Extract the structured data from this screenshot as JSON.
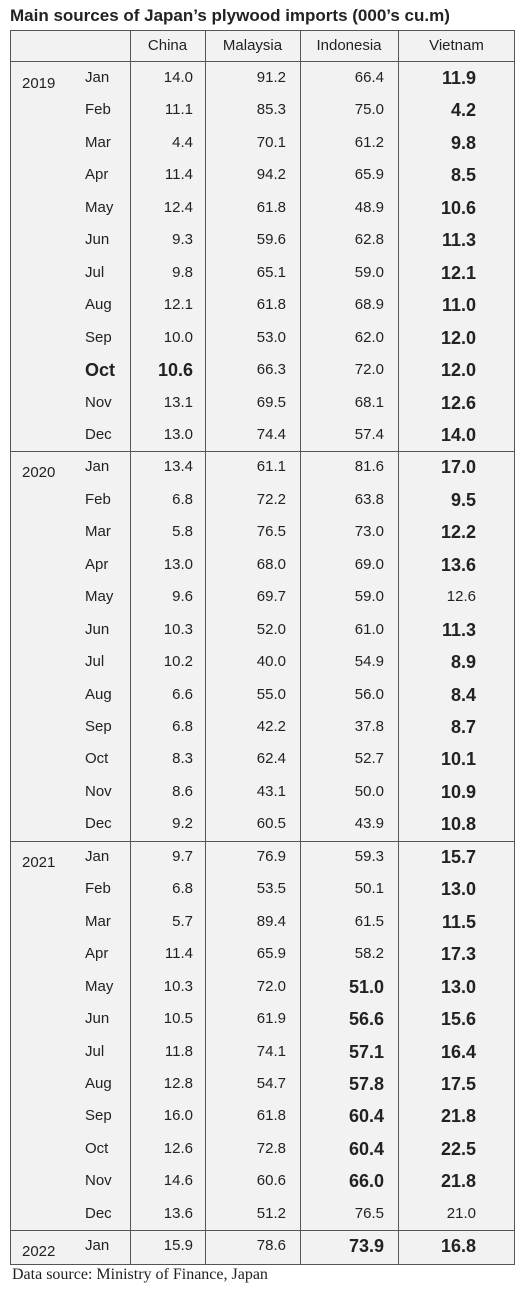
{
  "header": {
    "title": "Main sources of Japan’s plywood imports (000’s cu.m)"
  },
  "table": {
    "columns": [
      "China",
      "Malaysia",
      "Indonesia",
      "Vietnam"
    ],
    "groups": [
      {
        "year": "2019",
        "rows": [
          {
            "month": "Jan",
            "values": [
              "14.0",
              "91.2",
              "66.4",
              "11.9"
            ]
          },
          {
            "month": "Feb",
            "values": [
              "11.1",
              "85.3",
              "75.0",
              "4.2"
            ]
          },
          {
            "month": "Mar",
            "values": [
              "4.4",
              "70.1",
              "61.2",
              "9.8"
            ]
          },
          {
            "month": "Apr",
            "values": [
              "11.4",
              "94.2",
              "65.9",
              "8.5"
            ]
          },
          {
            "month": "May",
            "values": [
              "12.4",
              "61.8",
              "48.9",
              "10.6"
            ]
          },
          {
            "month": "Jun",
            "values": [
              "9.3",
              "59.6",
              "62.8",
              "11.3"
            ]
          },
          {
            "month": "Jul",
            "values": [
              "9.8",
              "65.1",
              "59.0",
              "12.1"
            ]
          },
          {
            "month": "Aug",
            "values": [
              "12.1",
              "61.8",
              "68.9",
              "11.0"
            ]
          },
          {
            "month": "Sep",
            "values": [
              "10.0",
              "53.0",
              "62.0",
              "12.0"
            ]
          },
          {
            "month": "Oct",
            "values": [
              "10.6",
              "66.3",
              "72.0",
              "12.0"
            ]
          },
          {
            "month": "Nov",
            "values": [
              "13.1",
              "69.5",
              "68.1",
              "12.6"
            ]
          },
          {
            "month": "Dec",
            "values": [
              "13.0",
              "74.4",
              "57.4",
              "14.0"
            ]
          }
        ]
      },
      {
        "year": "2020",
        "rows": [
          {
            "month": "Jan",
            "values": [
              "13.4",
              "61.1",
              "81.6",
              "17.0"
            ]
          },
          {
            "month": "Feb",
            "values": [
              "6.8",
              "72.2",
              "63.8",
              "9.5"
            ]
          },
          {
            "month": "Mar",
            "values": [
              "5.8",
              "76.5",
              "73.0",
              "12.2"
            ]
          },
          {
            "month": "Apr",
            "values": [
              "13.0",
              "68.0",
              "69.0",
              "13.6"
            ]
          },
          {
            "month": "May",
            "values": [
              "9.6",
              "69.7",
              "59.0",
              "12.6"
            ]
          },
          {
            "month": "Jun",
            "values": [
              "10.3",
              "52.0",
              "61.0",
              "11.3"
            ]
          },
          {
            "month": "Jul",
            "values": [
              "10.2",
              "40.0",
              "54.9",
              "8.9"
            ]
          },
          {
            "month": "Aug",
            "values": [
              "6.6",
              "55.0",
              "56.0",
              "8.4"
            ]
          },
          {
            "month": "Sep",
            "values": [
              "6.8",
              "42.2",
              "37.8",
              "8.7"
            ]
          },
          {
            "month": "Oct",
            "values": [
              "8.3",
              "62.4",
              "52.7",
              "10.1"
            ]
          },
          {
            "month": "Nov",
            "values": [
              "8.6",
              "43.1",
              "50.0",
              "10.9"
            ]
          },
          {
            "month": "Dec",
            "values": [
              "9.2",
              "60.5",
              "43.9",
              "10.8"
            ]
          }
        ]
      },
      {
        "year": "2021",
        "rows": [
          {
            "month": "Jan",
            "values": [
              "9.7",
              "76.9",
              "59.3",
              "15.7"
            ]
          },
          {
            "month": "Feb",
            "values": [
              "6.8",
              "53.5",
              "50.1",
              "13.0"
            ]
          },
          {
            "month": "Mar",
            "values": [
              "5.7",
              "89.4",
              "61.5",
              "11.5"
            ]
          },
          {
            "month": "Apr",
            "values": [
              "11.4",
              "65.9",
              "58.2",
              "17.3"
            ]
          },
          {
            "month": "May",
            "values": [
              "10.3",
              "72.0",
              "51.0",
              "13.0"
            ]
          },
          {
            "month": "Jun",
            "values": [
              "10.5",
              "61.9",
              "56.6",
              "15.6"
            ]
          },
          {
            "month": "Jul",
            "values": [
              "11.8",
              "74.1",
              "57.1",
              "16.4"
            ]
          },
          {
            "month": "Aug",
            "values": [
              "12.8",
              "54.7",
              "57.8",
              "17.5"
            ]
          },
          {
            "month": "Sep",
            "values": [
              "16.0",
              "61.8",
              "60.4",
              "21.8"
            ]
          },
          {
            "month": "Oct",
            "values": [
              "12.6",
              "72.8",
              "60.4",
              "22.5"
            ]
          },
          {
            "month": "Nov",
            "values": [
              "14.6",
              "60.6",
              "66.0",
              "21.8"
            ]
          },
          {
            "month": "Dec",
            "values": [
              "13.6",
              "51.2",
              "76.5",
              "21.0"
            ]
          }
        ]
      },
      {
        "year": "2022",
        "rows": [
          {
            "month": "Jan",
            "values": [
              "15.9",
              "78.6",
              "73.9",
              "16.8"
            ]
          }
        ]
      }
    ]
  },
  "footer": {
    "source": "Data source: Ministry of Finance, Japan"
  }
}
